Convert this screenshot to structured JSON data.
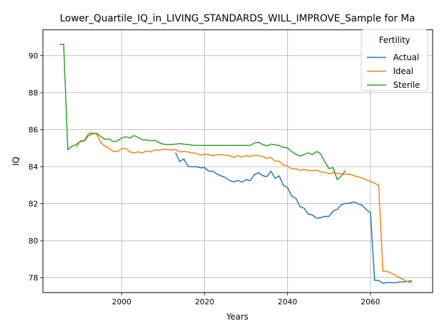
{
  "chart_data": {
    "type": "line",
    "title": "Lower_Quartile_IQ_in_LIVING_STANDARDS_WILL_IMPROVE_Sample for Ma",
    "xlabel": "Years",
    "ylabel": "IQ",
    "xlim": [
      1981,
      2075
    ],
    "ylim": [
      77.2,
      91.4
    ],
    "x_ticks": [
      2000,
      2020,
      2040,
      2060
    ],
    "y_ticks": [
      78,
      80,
      82,
      84,
      86,
      88,
      90
    ],
    "grid": true,
    "legend": {
      "title": "Fertility",
      "placement": "top-right"
    },
    "series": [
      {
        "name": "Actual",
        "color": "#1f77b4",
        "points": [
          [
            2013,
            84.75
          ],
          [
            2014,
            84.28
          ],
          [
            2015,
            84.42
          ],
          [
            2016,
            84.02
          ],
          [
            2017,
            84.0
          ],
          [
            2018,
            84.0
          ],
          [
            2019,
            83.94
          ],
          [
            2020,
            83.95
          ],
          [
            2021,
            83.76
          ],
          [
            2022,
            83.76
          ],
          [
            2023,
            83.6
          ],
          [
            2024,
            83.5
          ],
          [
            2025,
            83.42
          ],
          [
            2026,
            83.26
          ],
          [
            2027,
            83.18
          ],
          [
            2028,
            83.26
          ],
          [
            2029,
            83.17
          ],
          [
            2030,
            83.3
          ],
          [
            2031,
            83.25
          ],
          [
            2032,
            83.57
          ],
          [
            2033,
            83.68
          ],
          [
            2034,
            83.52
          ],
          [
            2035,
            83.46
          ],
          [
            2036,
            83.76
          ],
          [
            2037,
            83.37
          ],
          [
            2038,
            83.51
          ],
          [
            2039,
            83.0
          ],
          [
            2040,
            82.88
          ],
          [
            2041,
            82.42
          ],
          [
            2042,
            82.3
          ],
          [
            2043,
            81.84
          ],
          [
            2044,
            81.76
          ],
          [
            2045,
            81.44
          ],
          [
            2046,
            81.39
          ],
          [
            2047,
            81.22
          ],
          [
            2048,
            81.24
          ],
          [
            2049,
            81.32
          ],
          [
            2050,
            81.32
          ],
          [
            2051,
            81.6
          ],
          [
            2052,
            81.7
          ],
          [
            2053,
            81.95
          ],
          [
            2054,
            82.02
          ],
          [
            2055,
            82.03
          ],
          [
            2056,
            82.1
          ],
          [
            2057,
            82.0
          ],
          [
            2058,
            81.92
          ],
          [
            2059,
            81.68
          ],
          [
            2060,
            81.52
          ],
          [
            2061,
            77.87
          ],
          [
            2062,
            77.85
          ],
          [
            2063,
            77.7
          ],
          [
            2064,
            77.74
          ],
          [
            2065,
            77.74
          ],
          [
            2066,
            77.73
          ],
          [
            2067,
            77.78
          ],
          [
            2068,
            77.78
          ],
          [
            2069,
            77.8
          ],
          [
            2070,
            77.86
          ]
        ]
      },
      {
        "name": "Ideal",
        "color": "#ff7f0e",
        "points": [
          [
            1989,
            85.05
          ],
          [
            1990,
            85.4
          ],
          [
            1991,
            85.42
          ],
          [
            1992,
            85.8
          ],
          [
            1993,
            85.82
          ],
          [
            1994,
            85.75
          ],
          [
            1995,
            85.3
          ],
          [
            1996,
            85.1
          ],
          [
            1997,
            85.0
          ],
          [
            1998,
            84.82
          ],
          [
            1999,
            84.82
          ],
          [
            2000,
            84.98
          ],
          [
            2001,
            84.98
          ],
          [
            2002,
            84.8
          ],
          [
            2003,
            84.75
          ],
          [
            2004,
            84.8
          ],
          [
            2005,
            84.75
          ],
          [
            2006,
            84.85
          ],
          [
            2007,
            84.8
          ],
          [
            2008,
            84.92
          ],
          [
            2009,
            84.88
          ],
          [
            2010,
            84.95
          ],
          [
            2011,
            84.93
          ],
          [
            2012,
            84.9
          ],
          [
            2013,
            84.93
          ],
          [
            2014,
            84.8
          ],
          [
            2015,
            84.82
          ],
          [
            2016,
            84.8
          ],
          [
            2017,
            84.75
          ],
          [
            2018,
            84.72
          ],
          [
            2019,
            84.62
          ],
          [
            2020,
            84.68
          ],
          [
            2021,
            84.65
          ],
          [
            2022,
            84.6
          ],
          [
            2023,
            84.65
          ],
          [
            2024,
            84.65
          ],
          [
            2025,
            84.62
          ],
          [
            2026,
            84.6
          ],
          [
            2027,
            84.5
          ],
          [
            2028,
            84.6
          ],
          [
            2029,
            84.52
          ],
          [
            2030,
            84.6
          ],
          [
            2031,
            84.55
          ],
          [
            2032,
            84.62
          ],
          [
            2033,
            84.6
          ],
          [
            2034,
            84.55
          ],
          [
            2035,
            84.45
          ],
          [
            2036,
            84.5
          ],
          [
            2037,
            84.3
          ],
          [
            2038,
            84.3
          ],
          [
            2039,
            84.08
          ],
          [
            2040,
            84.05
          ],
          [
            2041,
            83.88
          ],
          [
            2042,
            83.9
          ],
          [
            2043,
            83.8
          ],
          [
            2044,
            83.85
          ],
          [
            2045,
            83.8
          ],
          [
            2046,
            83.78
          ],
          [
            2047,
            83.82
          ],
          [
            2048,
            83.72
          ],
          [
            2049,
            83.7
          ],
          [
            2050,
            83.62
          ],
          [
            2051,
            83.68
          ],
          [
            2052,
            83.65
          ],
          [
            2053,
            83.6
          ],
          [
            2054,
            83.6
          ],
          [
            2055,
            83.6
          ],
          [
            2056,
            83.52
          ],
          [
            2057,
            83.45
          ],
          [
            2058,
            83.4
          ],
          [
            2059,
            83.28
          ],
          [
            2060,
            83.22
          ],
          [
            2061,
            83.1
          ],
          [
            2062,
            83.0
          ],
          [
            2063,
            78.35
          ],
          [
            2064,
            78.35
          ],
          [
            2065,
            78.25
          ],
          [
            2066,
            78.15
          ],
          [
            2067,
            78.0
          ],
          [
            2068,
            77.9
          ],
          [
            2069,
            77.78
          ],
          [
            2070,
            77.75
          ]
        ]
      },
      {
        "name": "Sterile",
        "color": "#2ca02c",
        "points": [
          [
            1985,
            90.6
          ],
          [
            1986,
            90.62
          ],
          [
            1987,
            84.92
          ],
          [
            1988,
            85.1
          ],
          [
            1989,
            85.2
          ],
          [
            1990,
            85.35
          ],
          [
            1991,
            85.4
          ],
          [
            1992,
            85.68
          ],
          [
            1993,
            85.78
          ],
          [
            1994,
            85.8
          ],
          [
            1995,
            85.62
          ],
          [
            1996,
            85.48
          ],
          [
            1997,
            85.5
          ],
          [
            1998,
            85.35
          ],
          [
            1999,
            85.4
          ],
          [
            2000,
            85.55
          ],
          [
            2001,
            85.62
          ],
          [
            2002,
            85.55
          ],
          [
            2003,
            85.68
          ],
          [
            2004,
            85.58
          ],
          [
            2005,
            85.45
          ],
          [
            2006,
            85.45
          ],
          [
            2007,
            85.4
          ],
          [
            2008,
            85.42
          ],
          [
            2009,
            85.3
          ],
          [
            2010,
            85.22
          ],
          [
            2011,
            85.2
          ],
          [
            2012,
            85.2
          ],
          [
            2013,
            85.22
          ],
          [
            2014,
            85.25
          ],
          [
            2015,
            85.22
          ],
          [
            2016,
            85.2
          ],
          [
            2017,
            85.16
          ],
          [
            2018,
            85.15
          ],
          [
            2020,
            85.15
          ],
          [
            2025,
            85.15
          ],
          [
            2030,
            85.15
          ],
          [
            2031,
            85.15
          ],
          [
            2032,
            85.28
          ],
          [
            2033,
            85.32
          ],
          [
            2034,
            85.2
          ],
          [
            2035,
            85.12
          ],
          [
            2036,
            85.22
          ],
          [
            2037,
            85.18
          ],
          [
            2038,
            85.15
          ],
          [
            2039,
            85.05
          ],
          [
            2040,
            85.02
          ],
          [
            2041,
            84.82
          ],
          [
            2042,
            84.68
          ],
          [
            2043,
            84.58
          ],
          [
            2044,
            84.65
          ],
          [
            2045,
            84.75
          ],
          [
            2046,
            84.65
          ],
          [
            2047,
            84.82
          ],
          [
            2048,
            84.7
          ],
          [
            2049,
            84.25
          ],
          [
            2050,
            83.9
          ],
          [
            2051,
            83.95
          ],
          [
            2052,
            83.3
          ],
          [
            2053,
            83.5
          ],
          [
            2054,
            83.8
          ]
        ]
      }
    ]
  }
}
